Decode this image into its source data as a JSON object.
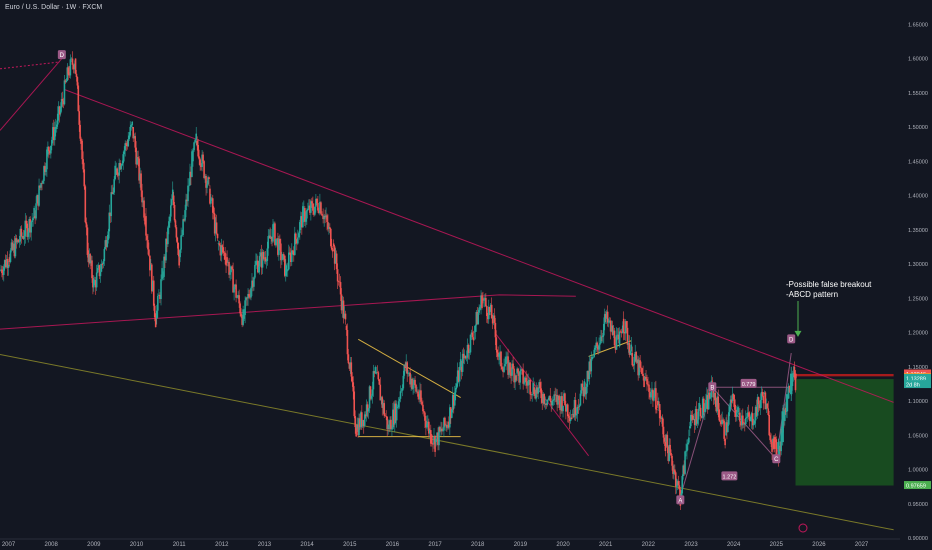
{
  "header": {
    "title": "Euro / U.S. Dollar · 1W · FXCM"
  },
  "notes": [
    "-Possible false breakout",
    "-ABCD pattern"
  ],
  "colors": {
    "background": "#131722",
    "up": "#26a69a",
    "down": "#ef5350",
    "trend_pink": "#c2185b",
    "trend_olive": "#8d8b2a",
    "wedge": "#f7c948",
    "abcd": "#9c5a87",
    "arrow": "#4caf50",
    "target_zone": "#1b5e20",
    "stop_zone": "#b71c1c",
    "axis_text": "#b2b5be"
  },
  "chart_data": {
    "type": "candlestick",
    "title": "Euro / U.S. Dollar · 1W · FXCM",
    "xlabel": "",
    "ylabel": "",
    "xlim": [
      2006.8,
      2027.9
    ],
    "ylim": [
      0.9,
      1.665
    ],
    "x_ticks": [
      "2007",
      "2008",
      "2009",
      "2010",
      "2011",
      "2012",
      "2013",
      "2014",
      "2015",
      "2016",
      "2017",
      "2018",
      "2019",
      "2020",
      "2021",
      "2022",
      "2023",
      "2024",
      "2025",
      "2026",
      "2027"
    ],
    "y_ticks": [
      "1.65000",
      "1.60000",
      "1.55000",
      "1.50000",
      "1.45000",
      "1.40000",
      "1.35000",
      "1.30000",
      "1.25000",
      "1.20000",
      "1.15000",
      "1.10000",
      "1.05000",
      "1.00000",
      "0.95000",
      "0.90000"
    ],
    "price_path": [
      [
        2006.8,
        1.29
      ],
      [
        2007.0,
        1.31
      ],
      [
        2007.3,
        1.34
      ],
      [
        2007.6,
        1.37
      ],
      [
        2007.9,
        1.46
      ],
      [
        2008.2,
        1.52
      ],
      [
        2008.4,
        1.58
      ],
      [
        2008.55,
        1.6
      ],
      [
        2008.7,
        1.48
      ],
      [
        2008.85,
        1.32
      ],
      [
        2009.0,
        1.27
      ],
      [
        2009.2,
        1.3
      ],
      [
        2009.5,
        1.43
      ],
      [
        2009.9,
        1.5
      ],
      [
        2010.2,
        1.37
      ],
      [
        2010.45,
        1.22
      ],
      [
        2010.6,
        1.28
      ],
      [
        2010.85,
        1.4
      ],
      [
        2011.0,
        1.31
      ],
      [
        2011.3,
        1.45
      ],
      [
        2011.4,
        1.48
      ],
      [
        2011.7,
        1.41
      ],
      [
        2011.9,
        1.33
      ],
      [
        2012.1,
        1.31
      ],
      [
        2012.5,
        1.22
      ],
      [
        2012.8,
        1.3
      ],
      [
        2013.0,
        1.31
      ],
      [
        2013.2,
        1.35
      ],
      [
        2013.5,
        1.29
      ],
      [
        2013.9,
        1.37
      ],
      [
        2014.3,
        1.39
      ],
      [
        2014.4,
        1.37
      ],
      [
        2014.6,
        1.33
      ],
      [
        2014.9,
        1.21
      ],
      [
        2015.15,
        1.06
      ],
      [
        2015.35,
        1.08
      ],
      [
        2015.6,
        1.14
      ],
      [
        2015.9,
        1.06
      ],
      [
        2016.1,
        1.09
      ],
      [
        2016.3,
        1.15
      ],
      [
        2016.6,
        1.11
      ],
      [
        2016.9,
        1.05
      ],
      [
        2017.0,
        1.04
      ],
      [
        2017.3,
        1.07
      ],
      [
        2017.6,
        1.15
      ],
      [
        2017.9,
        1.2
      ],
      [
        2018.1,
        1.25
      ],
      [
        2018.35,
        1.22
      ],
      [
        2018.5,
        1.16
      ],
      [
        2018.9,
        1.14
      ],
      [
        2019.3,
        1.12
      ],
      [
        2019.7,
        1.1
      ],
      [
        2020.0,
        1.1
      ],
      [
        2020.2,
        1.08
      ],
      [
        2020.5,
        1.12
      ],
      [
        2020.8,
        1.18
      ],
      [
        2021.0,
        1.22
      ],
      [
        2021.3,
        1.18
      ],
      [
        2021.4,
        1.22
      ],
      [
        2021.6,
        1.17
      ],
      [
        2021.9,
        1.13
      ],
      [
        2022.2,
        1.1
      ],
      [
        2022.4,
        1.04
      ],
      [
        2022.6,
        1.0
      ],
      [
        2022.75,
        0.96
      ],
      [
        2022.95,
        1.06
      ],
      [
        2023.2,
        1.09
      ],
      [
        2023.35,
        1.09
      ],
      [
        2023.5,
        1.12
      ],
      [
        2023.8,
        1.05
      ],
      [
        2023.95,
        1.1
      ],
      [
        2024.1,
        1.08
      ],
      [
        2024.4,
        1.07
      ],
      [
        2024.7,
        1.11
      ],
      [
        2024.9,
        1.04
      ],
      [
        2025.05,
        1.02
      ],
      [
        2025.2,
        1.09
      ],
      [
        2025.4,
        1.15
      ],
      [
        2025.45,
        1.13
      ]
    ],
    "candles": [
      {
        "x": 2024.95,
        "o": 1.045,
        "h": 1.05,
        "l": 1.025,
        "c": 1.03
      },
      {
        "x": 2025.05,
        "o": 1.03,
        "h": 1.045,
        "l": 1.018,
        "c": 1.04
      },
      {
        "x": 2025.15,
        "o": 1.04,
        "h": 1.09,
        "l": 1.035,
        "c": 1.085
      },
      {
        "x": 2025.25,
        "o": 1.085,
        "h": 1.12,
        "l": 1.075,
        "c": 1.11
      },
      {
        "x": 2025.35,
        "o": 1.11,
        "h": 1.15,
        "l": 1.1,
        "c": 1.14
      },
      {
        "x": 2025.45,
        "o": 1.14,
        "h": 1.145,
        "l": 1.125,
        "c": 1.133
      }
    ],
    "pattern_labels": [
      {
        "text": "D",
        "x": 2008.25,
        "y": 1.605
      },
      {
        "text": "A",
        "x": 2022.75,
        "y": 0.955
      },
      {
        "text": "B",
        "x": 2023.5,
        "y": 1.12
      },
      {
        "text": "C",
        "x": 2025.0,
        "y": 1.015
      },
      {
        "text": "D",
        "x": 2025.35,
        "y": 1.19
      }
    ],
    "ratio_labels": [
      {
        "text": "1.272",
        "x": 2023.9,
        "y": 0.99
      },
      {
        "text": "0.779",
        "x": 2024.35,
        "y": 1.125
      }
    ],
    "price_labels": [
      {
        "text": "1.13946",
        "y": 1.13946,
        "color": "#ef5350"
      },
      {
        "text": "1.13392",
        "y": 1.13392,
        "color": "#f5a623"
      },
      {
        "text": "1.13289",
        "y": 1.13289,
        "color": "#26a69a"
      },
      {
        "text": "2d 8h",
        "y": 1.124,
        "color": "#26a69a"
      },
      {
        "text": "0.97659",
        "y": 0.97659,
        "color": "#4caf50"
      }
    ],
    "zones": {
      "stop": [
        1.13946,
        1.136
      ],
      "target": [
        1.132,
        0.97659
      ],
      "x_range": [
        2025.45,
        2027.75
      ]
    },
    "grid": false
  }
}
